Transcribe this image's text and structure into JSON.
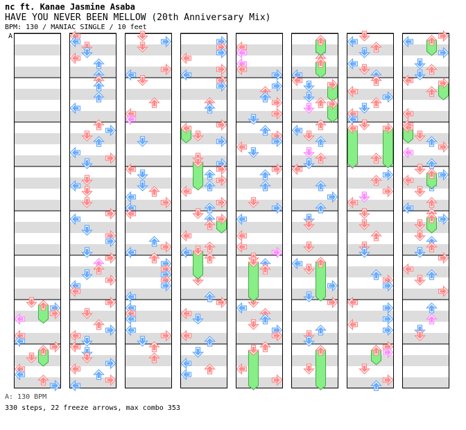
{
  "header": {
    "artist": "nc ft. Kanae Jasmine Asaba",
    "title": "HAVE YOU NEVER BEEN MELLOW (20th Anniversary Mix)",
    "meta": "BPM: 130 / MANIAC SINGLE / 10 feet"
  },
  "section_label": "A",
  "footer": {
    "bpm_line": "A: 130 BPM",
    "stats": "330 steps, 22 freeze arrows, max combo 353"
  },
  "colors": {
    "red_arrow": "#ff8888",
    "blue_arrow": "#66aaff",
    "pink_arrow": "#ff88ff",
    "freeze": "#88ee88",
    "stripe": "#dddddd"
  },
  "columns_count": 8,
  "measures_per_column": 8
}
